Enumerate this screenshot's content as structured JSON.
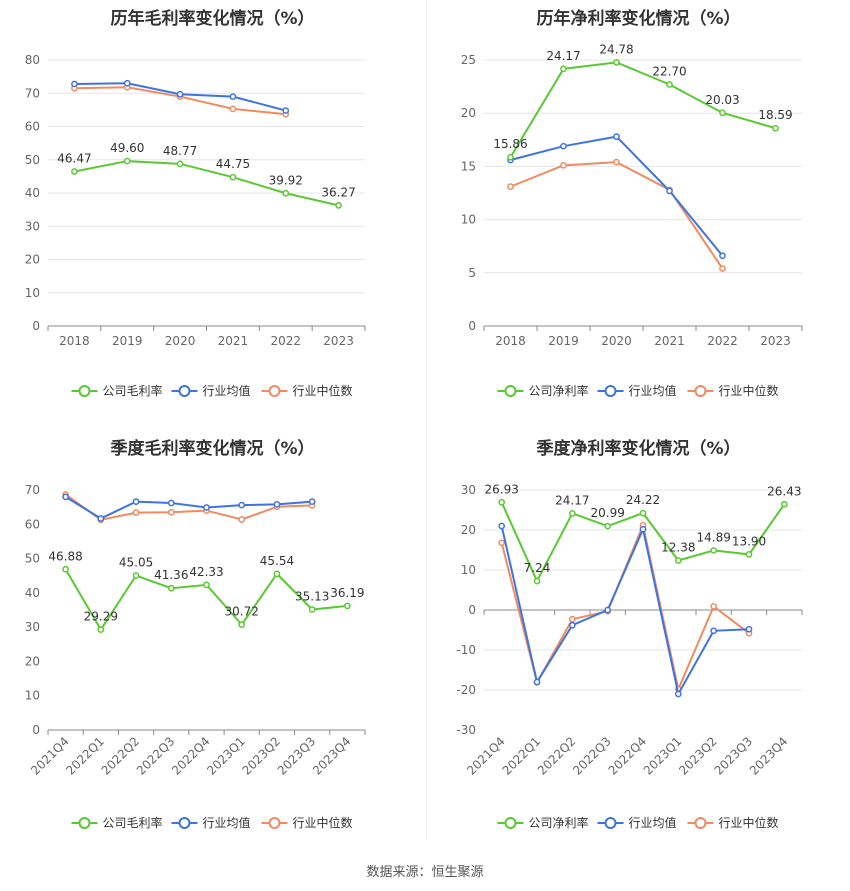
{
  "source_text": "数据来源：恒生聚源",
  "colors": {
    "company": "#5ac832",
    "avg": "#3f73e0",
    "median": "#f08a60",
    "grid": "#e6e6e6",
    "axis": "#888888"
  },
  "chart_data": [
    {
      "type": "line",
      "title": "历年毛利率变化情况（%）",
      "categories": [
        "2018",
        "2019",
        "2020",
        "2021",
        "2022",
        "2023"
      ],
      "yticks": [
        "0",
        "10",
        "20",
        "30",
        "40",
        "50",
        "60",
        "70",
        "80"
      ],
      "ylim": [
        0,
        80
      ],
      "grid": true,
      "legend_position": "bottom",
      "rotate_x": false,
      "series": [
        {
          "name": "公司毛利率",
          "role": "company",
          "values": [
            46.47,
            49.6,
            48.77,
            44.75,
            39.92,
            36.27
          ],
          "labels": [
            "46.47",
            "49.60",
            "48.77",
            "44.75",
            "39.92",
            "36.27"
          ]
        },
        {
          "name": "行业均值",
          "role": "avg",
          "values": [
            72.8,
            73.0,
            69.7,
            69.0,
            64.8,
            null
          ]
        },
        {
          "name": "行业中位数",
          "role": "median",
          "values": [
            71.5,
            71.8,
            69.0,
            65.3,
            63.7,
            null
          ]
        }
      ]
    },
    {
      "type": "line",
      "title": "历年净利率变化情况（%）",
      "categories": [
        "2018",
        "2019",
        "2020",
        "2021",
        "2022",
        "2023"
      ],
      "yticks": [
        "0",
        "5",
        "10",
        "15",
        "20",
        "25"
      ],
      "ylim": [
        0,
        25
      ],
      "grid": true,
      "legend_position": "bottom",
      "rotate_x": false,
      "series": [
        {
          "name": "公司净利率",
          "role": "company",
          "values": [
            15.86,
            24.17,
            24.78,
            22.7,
            20.03,
            18.59
          ],
          "labels": [
            "15.86",
            "24.17",
            "24.78",
            "22.70",
            "20.03",
            "18.59"
          ]
        },
        {
          "name": "行业均值",
          "role": "avg",
          "values": [
            15.6,
            16.9,
            17.8,
            12.7,
            6.6,
            null
          ]
        },
        {
          "name": "行业中位数",
          "role": "median",
          "values": [
            13.1,
            15.1,
            15.4,
            12.8,
            5.4,
            null
          ]
        }
      ]
    },
    {
      "type": "line",
      "title": "季度毛利率变化情况（%）",
      "categories": [
        "2021Q4",
        "2022Q1",
        "2022Q2",
        "2022Q3",
        "2022Q4",
        "2023Q1",
        "2023Q2",
        "2023Q3",
        "2023Q4"
      ],
      "yticks": [
        "0",
        "10",
        "20",
        "30",
        "40",
        "50",
        "60",
        "70"
      ],
      "ylim": [
        0,
        70
      ],
      "grid": false,
      "legend_position": "bottom",
      "rotate_x": true,
      "series": [
        {
          "name": "公司毛利率",
          "role": "company",
          "values": [
            46.88,
            29.29,
            45.05,
            41.36,
            42.33,
            30.72,
            45.54,
            35.13,
            36.19
          ],
          "labels": [
            "46.88",
            "29.29",
            "45.05",
            "41.36",
            "42.33",
            "30.72",
            "45.54",
            "35.13",
            "36.19"
          ]
        },
        {
          "name": "行业均值",
          "role": "avg",
          "values": [
            68.0,
            61.7,
            66.6,
            66.2,
            64.9,
            65.6,
            65.8,
            66.6,
            null
          ]
        },
        {
          "name": "行业中位数",
          "role": "median",
          "values": [
            68.7,
            61.3,
            63.4,
            63.5,
            64.0,
            61.4,
            65.1,
            65.5,
            null
          ]
        }
      ]
    },
    {
      "type": "line",
      "title": "季度净利率变化情况（%）",
      "categories": [
        "2021Q4",
        "2022Q1",
        "2022Q2",
        "2022Q3",
        "2022Q4",
        "2023Q1",
        "2023Q2",
        "2023Q3",
        "2023Q4"
      ],
      "yticks": [
        "-30",
        "-20",
        "-10",
        "0",
        "10",
        "20",
        "30"
      ],
      "ylim": [
        -30,
        30
      ],
      "grid": true,
      "legend_position": "bottom",
      "rotate_x": true,
      "series": [
        {
          "name": "公司净利率",
          "role": "company",
          "values": [
            26.93,
            7.24,
            24.17,
            20.99,
            24.22,
            12.38,
            14.89,
            13.9,
            26.43
          ],
          "labels": [
            "26.93",
            "7.24",
            "24.17",
            "20.99",
            "24.22",
            "12.38",
            "14.89",
            "13.90",
            "26.43"
          ]
        },
        {
          "name": "行业均值",
          "role": "avg",
          "values": [
            21.0,
            -18.0,
            -3.8,
            0.0,
            20.2,
            -21.0,
            -5.2,
            -4.8,
            null
          ]
        },
        {
          "name": "行业中位数",
          "role": "median",
          "values": [
            16.8,
            -18.1,
            -2.3,
            -0.3,
            21.2,
            -19.8,
            0.9,
            -5.8,
            null
          ]
        }
      ]
    }
  ]
}
